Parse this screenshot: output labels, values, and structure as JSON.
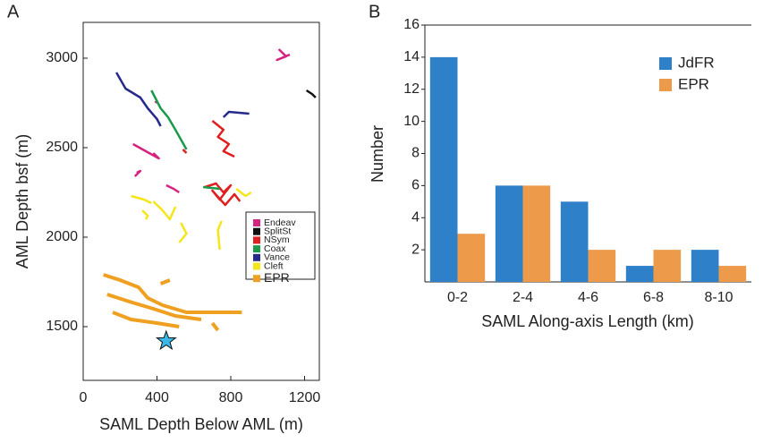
{
  "chart_data": [
    {
      "type": "line",
      "panel_label": "A",
      "x_label": "SAML Depth Below AML (m)",
      "y_label": "AML Depth bsf (m)",
      "xlim": [
        0,
        1280
      ],
      "ylim": [
        1200,
        3200
      ],
      "xticks": [
        0,
        400,
        800,
        1200
      ],
      "yticks": [
        1500,
        2000,
        2500,
        3000
      ],
      "series": [
        {
          "name": "Endeav",
          "color": "#d6237f",
          "x": [
            1060,
            1100,
            1050,
            1120,
            null,
            270,
            340,
            410,
            380,
            null,
            280,
            310,
            290,
            null,
            450,
            490,
            520,
            null,
            390,
            400
          ],
          "values": [
            3050,
            3010,
            2990,
            3020,
            null,
            2520,
            2480,
            2440,
            2470,
            null,
            2340,
            2370,
            2360,
            null,
            2290,
            2270,
            2250,
            null,
            2760,
            2750
          ]
        },
        {
          "name": "SplitSt",
          "color": "#111111",
          "x": [
            1210,
            1240,
            1260
          ],
          "values": [
            2820,
            2800,
            2780
          ]
        },
        {
          "name": "NSym",
          "color": "#e02020",
          "x": [
            700,
            760,
            730,
            790,
            760,
            820,
            null,
            540,
            560,
            null,
            660,
            720,
            760,
            800,
            740,
            700,
            770,
            820,
            850
          ],
          "values": [
            2650,
            2600,
            2560,
            2520,
            2480,
            2450,
            null,
            2490,
            2470,
            null,
            2280,
            2300,
            2250,
            2290,
            2210,
            2260,
            2180,
            2240,
            2200
          ]
        },
        {
          "name": "Coax",
          "color": "#1a9a4a",
          "x": [
            370,
            420,
            460,
            500,
            560,
            null,
            650,
            740
          ],
          "values": [
            2820,
            2720,
            2670,
            2600,
            2490,
            null,
            2280,
            2270
          ]
        },
        {
          "name": "Vance",
          "color": "#252a8c",
          "x": [
            180,
            230,
            310,
            350,
            400,
            420,
            null,
            760,
            790,
            900
          ],
          "values": [
            2920,
            2830,
            2780,
            2720,
            2660,
            2620,
            null,
            2670,
            2700,
            2690
          ]
        },
        {
          "name": "Cleft",
          "color": "#f5e61a",
          "x": [
            260,
            330,
            370,
            null,
            380,
            430,
            470,
            500,
            null,
            320,
            350,
            340,
            null,
            530,
            560,
            520,
            null,
            750,
            730,
            740,
            null,
            830,
            880,
            910
          ],
          "values": [
            2230,
            2210,
            2190,
            null,
            2200,
            2150,
            2100,
            2170,
            null,
            2150,
            2120,
            2100,
            null,
            2080,
            2020,
            1970,
            null,
            2090,
            2040,
            1930,
            null,
            2270,
            2230,
            2250
          ]
        },
        {
          "name": "EPR",
          "color": "#f0a020",
          "x": [
            110,
            200,
            300,
            350,
            430,
            560,
            700,
            860,
            null,
            130,
            250,
            380,
            500,
            640,
            null,
            160,
            260,
            400,
            520,
            null,
            420,
            470,
            null,
            700,
            730
          ],
          "values": [
            1790,
            1760,
            1720,
            1660,
            1620,
            1580,
            1580,
            1580,
            null,
            1680,
            1640,
            1600,
            1560,
            1540,
            null,
            1580,
            1540,
            1520,
            1500,
            null,
            1740,
            1760,
            null,
            1520,
            1480
          ]
        }
      ],
      "marker": {
        "x": 450,
        "y": 1420,
        "color": "#3bb8e8"
      }
    },
    {
      "type": "bar",
      "panel_label": "B",
      "x_label": "SAML Along-axis Length (km)",
      "y_label": "Number",
      "categories": [
        "0-2",
        "2-4",
        "4-6",
        "6-8",
        "8-10"
      ],
      "ylim": [
        0,
        16
      ],
      "yticks": [
        2,
        4,
        6,
        8,
        10,
        12,
        14,
        16
      ],
      "series": [
        {
          "name": "JdFR",
          "color": "#2e81c8",
          "values": [
            14,
            6,
            5,
            1,
            2
          ]
        },
        {
          "name": "EPR",
          "color": "#ed9a4b",
          "values": [
            3,
            6,
            2,
            2,
            1
          ]
        }
      ]
    }
  ]
}
